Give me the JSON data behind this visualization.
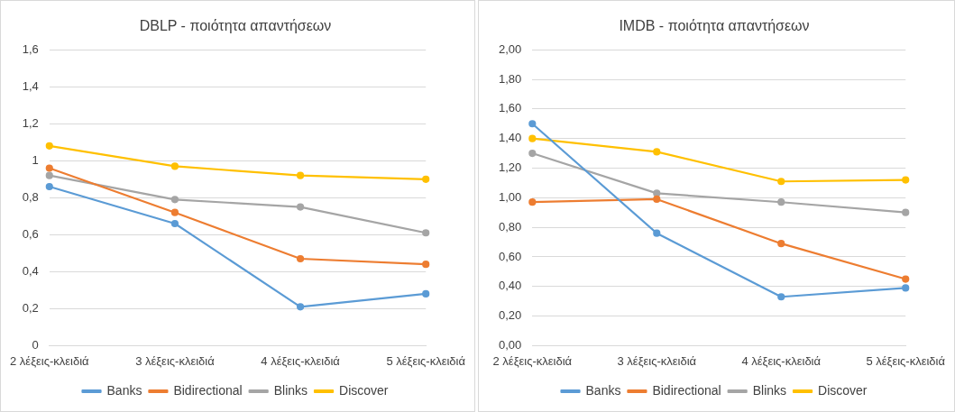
{
  "chart_data": [
    {
      "type": "line",
      "title": "DBLP - ποιότητα απαντήσεων",
      "categories": [
        "2 λέξεις-κλειδιά",
        "3 λέξεις-κλειδιά",
        "4 λέξεις-κλειδιά",
        "5 λέξεις-κλειδιά"
      ],
      "series": [
        {
          "name": "Banks",
          "color": "#5b9bd5",
          "values": [
            0.86,
            0.66,
            0.21,
            0.28
          ]
        },
        {
          "name": "Bidirectional",
          "color": "#ed7d31",
          "values": [
            0.96,
            0.72,
            0.47,
            0.44
          ]
        },
        {
          "name": "Blinks",
          "color": "#a5a5a5",
          "values": [
            0.92,
            0.79,
            0.75,
            0.61
          ]
        },
        {
          "name": "Discover",
          "color": "#ffc000",
          "values": [
            1.08,
            0.97,
            0.92,
            0.9
          ]
        }
      ],
      "ylim": [
        0,
        1.6
      ],
      "yticks": [
        0,
        {
          "value": 0.2,
          "label": "0,2"
        },
        {
          "value": 0.4,
          "label": "0,4"
        },
        {
          "value": 0.6,
          "label": "0,6"
        },
        {
          "value": 0.8,
          "label": "0,8"
        },
        1,
        {
          "value": 1.2,
          "label": "1,2"
        },
        {
          "value": 1.4,
          "label": "1,4"
        },
        {
          "value": 1.6,
          "label": "1,6"
        }
      ],
      "grid": "y",
      "legend": "bottom",
      "marker": "circle",
      "line_style": "solid"
    },
    {
      "type": "line",
      "title": "IMDB - ποιότητα απαντήσεων",
      "categories": [
        "2 λέξεις-κλειδιά",
        "3 λέξεις-κλειδιά",
        "4 λέξεις-κλειδιά",
        "5 λέξεις-κλειδιά"
      ],
      "series": [
        {
          "name": "Banks",
          "color": "#5b9bd5",
          "values": [
            1.5,
            0.76,
            0.33,
            0.39
          ]
        },
        {
          "name": "Bidirectional",
          "color": "#ed7d31",
          "values": [
            0.97,
            0.99,
            0.69,
            0.45
          ]
        },
        {
          "name": "Blinks",
          "color": "#a5a5a5",
          "values": [
            1.3,
            1.03,
            0.97,
            0.9
          ]
        },
        {
          "name": "Discover",
          "color": "#ffc000",
          "values": [
            1.4,
            1.31,
            1.11,
            1.12
          ]
        }
      ],
      "ylim": [
        0,
        2
      ],
      "yticks": [
        {
          "value": 0,
          "label": "0,00"
        },
        {
          "value": 0.2,
          "label": "0,20"
        },
        {
          "value": 0.4,
          "label": "0,40"
        },
        {
          "value": 0.6,
          "label": "0,60"
        },
        {
          "value": 0.8,
          "label": "0,80"
        },
        {
          "value": 1,
          "label": "1,00"
        },
        {
          "value": 1.2,
          "label": "1,20"
        },
        {
          "value": 1.4,
          "label": "1,40"
        },
        {
          "value": 1.6,
          "label": "1,60"
        },
        {
          "value": 1.8,
          "label": "1,80"
        },
        {
          "value": 2,
          "label": "2,00"
        }
      ],
      "grid": "y",
      "legend": "bottom",
      "marker": "circle",
      "line_style": "solid"
    }
  ]
}
